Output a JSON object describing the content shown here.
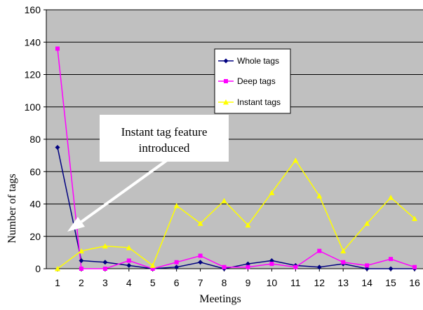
{
  "chart_data": {
    "type": "line",
    "title": "",
    "xlabel": "Meetings",
    "ylabel": "Number of tags",
    "categories": [
      "1",
      "2",
      "3",
      "4",
      "5",
      "6",
      "7",
      "8",
      "9",
      "10",
      "11",
      "12",
      "13",
      "14",
      "15",
      "16"
    ],
    "ylim": [
      0,
      160
    ],
    "yticks": [
      "0",
      "20",
      "40",
      "60",
      "80",
      "100",
      "120",
      "140",
      "160"
    ],
    "grid": true,
    "plot_background": "#c0c0c0",
    "legend_position": "inside-upper-center",
    "series": [
      {
        "name": "Whole tags",
        "color": "#000080",
        "marker": "diamond",
        "values": [
          75,
          5,
          4,
          2,
          0,
          1,
          4,
          0,
          3,
          5,
          2,
          1,
          3,
          0,
          0,
          0
        ]
      },
      {
        "name": "Deep tags",
        "color": "#ff00ff",
        "marker": "square",
        "values": [
          136,
          0,
          0,
          5,
          0,
          4,
          8,
          1,
          1,
          3,
          1,
          11,
          4,
          2,
          6,
          1
        ]
      },
      {
        "name": "Instant tags",
        "color": "#ffff00",
        "marker": "triangle",
        "values": [
          0,
          11,
          14,
          13,
          2,
          39,
          28,
          42,
          27,
          47,
          67,
          45,
          11,
          28,
          44,
          31
        ]
      }
    ],
    "annotations": [
      {
        "text_lines": [
          "Instant tag feature",
          "introduced"
        ],
        "points_to_category": "2"
      }
    ]
  }
}
